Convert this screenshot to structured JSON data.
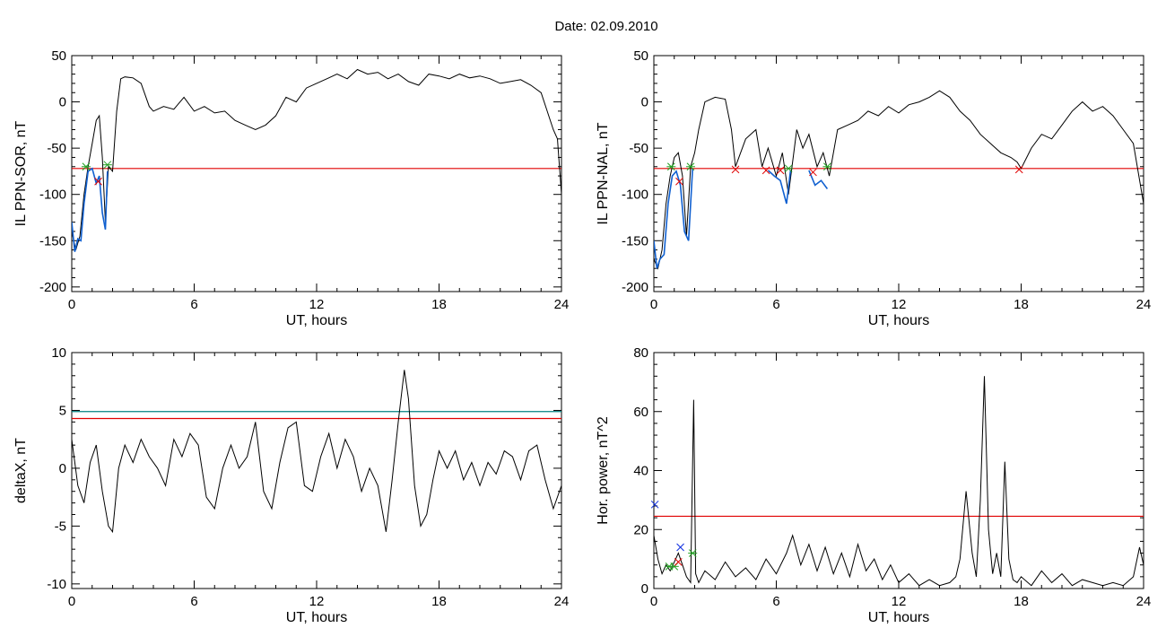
{
  "figure": {
    "date_label": "Date:  02.09.2010"
  },
  "chart_data": [
    {
      "type": "line",
      "xlabel": "UT, hours",
      "ylabel": "IL PPN-SOR, nT",
      "xlim": [
        0,
        24
      ],
      "ylim": [
        -205,
        50
      ],
      "xticks": [
        0,
        6,
        12,
        18,
        24
      ],
      "yticks": [
        -200,
        -150,
        -100,
        -50,
        0,
        50
      ],
      "threshold_lines": [
        {
          "y": -72,
          "color": "#e00000"
        }
      ],
      "series": [
        {
          "color": "#000000",
          "x": [
            0,
            0.2,
            0.4,
            0.6,
            0.8,
            1.0,
            1.2,
            1.35,
            1.5,
            1.65,
            1.8,
            2.0,
            2.2,
            2.4,
            2.6,
            3.0,
            3.4,
            3.8,
            4.0,
            4.5,
            5.0,
            5.5,
            6.0,
            6.5,
            7.0,
            7.5,
            8.0,
            8.5,
            9.0,
            9.5,
            10.0,
            10.5,
            11.0,
            11.5,
            12.0,
            12.5,
            13.0,
            13.5,
            14.0,
            14.5,
            15.0,
            15.5,
            16.0,
            16.5,
            17.0,
            17.5,
            18.0,
            18.5,
            19.0,
            19.5,
            20.0,
            20.5,
            21.0,
            21.5,
            22.0,
            22.5,
            23.0,
            23.3,
            23.6,
            23.8,
            24.0
          ],
          "y": [
            -140,
            -160,
            -145,
            -100,
            -70,
            -45,
            -20,
            -15,
            -60,
            -130,
            -70,
            -75,
            -10,
            25,
            27,
            26,
            20,
            -5,
            -10,
            -5,
            -8,
            5,
            -10,
            -5,
            -12,
            -10,
            -20,
            -25,
            -30,
            -25,
            -15,
            5,
            0,
            15,
            20,
            25,
            30,
            25,
            35,
            30,
            32,
            25,
            30,
            22,
            18,
            30,
            28,
            25,
            30,
            26,
            28,
            25,
            20,
            22,
            24,
            18,
            10,
            -10,
            -30,
            -40,
            -100
          ]
        },
        {
          "color": "#1060d0",
          "x": [
            0,
            0.15,
            0.3,
            0.45,
            0.6,
            0.8,
            1.0,
            1.2,
            1.35,
            1.5,
            1.65,
            1.75
          ],
          "y": [
            -130,
            -162,
            -148,
            -150,
            -110,
            -75,
            -72,
            -88,
            -80,
            -120,
            -138,
            -75
          ]
        }
      ],
      "markers": [
        {
          "x": 0.7,
          "y": -70,
          "symbol": "x",
          "color": "#20a020"
        },
        {
          "x": 1.75,
          "y": -68,
          "symbol": "x",
          "color": "#20a020"
        },
        {
          "x": 1.3,
          "y": -86,
          "symbol": "x",
          "color": "#e00000"
        }
      ]
    },
    {
      "type": "line",
      "xlabel": "UT, hours",
      "ylabel": "IL PPN-NAL, nT",
      "xlim": [
        0,
        24
      ],
      "ylim": [
        -205,
        50
      ],
      "xticks": [
        0,
        6,
        12,
        18,
        24
      ],
      "yticks": [
        -200,
        -150,
        -100,
        -50,
        0,
        50
      ],
      "threshold_lines": [
        {
          "y": -72,
          "color": "#e00000"
        }
      ],
      "series": [
        {
          "color": "#000000",
          "x": [
            0,
            0.2,
            0.4,
            0.6,
            0.8,
            1.0,
            1.2,
            1.4,
            1.6,
            1.8,
            2.0,
            2.2,
            2.5,
            3.0,
            3.5,
            3.8,
            4.0,
            4.5,
            5.0,
            5.3,
            5.6,
            6.0,
            6.3,
            6.6,
            7.0,
            7.3,
            7.6,
            8.0,
            8.3,
            8.6,
            9.0,
            9.5,
            10.0,
            10.5,
            11.0,
            11.5,
            12.0,
            12.5,
            13.0,
            13.5,
            14.0,
            14.5,
            15.0,
            15.5,
            16.0,
            16.5,
            17.0,
            17.5,
            17.8,
            18.0,
            18.5,
            19.0,
            19.5,
            20.0,
            20.5,
            21.0,
            21.5,
            22.0,
            22.5,
            23.0,
            23.5,
            24.0
          ],
          "y": [
            -170,
            -180,
            -160,
            -110,
            -80,
            -60,
            -55,
            -80,
            -145,
            -70,
            -55,
            -30,
            0,
            5,
            3,
            -30,
            -70,
            -40,
            -30,
            -70,
            -50,
            -80,
            -55,
            -100,
            -30,
            -50,
            -35,
            -70,
            -55,
            -80,
            -30,
            -25,
            -20,
            -10,
            -15,
            -5,
            -12,
            -3,
            0,
            5,
            12,
            5,
            -10,
            -20,
            -35,
            -45,
            -55,
            -60,
            -65,
            -72,
            -50,
            -35,
            -40,
            -25,
            -10,
            0,
            -10,
            -5,
            -15,
            -30,
            -45,
            -110
          ]
        },
        {
          "color": "#1060d0",
          "x": [
            0,
            0.15,
            0.3,
            0.5,
            0.7,
            0.9,
            1.1,
            1.3,
            1.5,
            1.7,
            1.9
          ],
          "y": [
            -150,
            -180,
            -170,
            -165,
            -110,
            -80,
            -75,
            -90,
            -140,
            -150,
            -72
          ]
        },
        {
          "color": "#1060d0",
          "x": [
            5.6,
            5.9,
            6.2,
            6.5,
            6.7
          ],
          "y": [
            -74,
            -80,
            -85,
            -110,
            -74
          ]
        },
        {
          "color": "#1060d0",
          "x": [
            7.6,
            7.9,
            8.2,
            8.5
          ],
          "y": [
            -74,
            -90,
            -85,
            -94
          ]
        }
      ],
      "markers": [
        {
          "x": 0.85,
          "y": -70,
          "symbol": "x",
          "color": "#20a020"
        },
        {
          "x": 1.8,
          "y": -70,
          "symbol": "x",
          "color": "#20a020"
        },
        {
          "x": 6.6,
          "y": -72,
          "symbol": "x",
          "color": "#20a020"
        },
        {
          "x": 8.5,
          "y": -70,
          "symbol": "x",
          "color": "#20a020"
        },
        {
          "x": 1.25,
          "y": -86,
          "symbol": "x",
          "color": "#e00000"
        },
        {
          "x": 4.0,
          "y": -73,
          "symbol": "x",
          "color": "#e00000"
        },
        {
          "x": 5.5,
          "y": -74,
          "symbol": "x",
          "color": "#e00000"
        },
        {
          "x": 6.2,
          "y": -74,
          "symbol": "x",
          "color": "#e00000"
        },
        {
          "x": 7.8,
          "y": -76,
          "symbol": "x",
          "color": "#e00000"
        },
        {
          "x": 17.9,
          "y": -73,
          "symbol": "x",
          "color": "#e00000"
        }
      ]
    },
    {
      "type": "line",
      "xlabel": "UT, hours",
      "ylabel": "deltaX, nT",
      "xlim": [
        0,
        24
      ],
      "ylim": [
        -10.4,
        10
      ],
      "xticks": [
        0,
        6,
        12,
        18,
        24
      ],
      "yticks": [
        -10,
        -5,
        0,
        5,
        10
      ],
      "threshold_lines": [
        {
          "y": 4.9,
          "color": "#008080"
        },
        {
          "y": 4.3,
          "color": "#e00000"
        }
      ],
      "series": [
        {
          "color": "#000000",
          "x": [
            0,
            0.3,
            0.6,
            0.9,
            1.2,
            1.5,
            1.8,
            2.0,
            2.3,
            2.6,
            3.0,
            3.4,
            3.8,
            4.2,
            4.6,
            5.0,
            5.4,
            5.8,
            6.2,
            6.6,
            7.0,
            7.4,
            7.8,
            8.2,
            8.6,
            9.0,
            9.4,
            9.8,
            10.2,
            10.6,
            11.0,
            11.4,
            11.8,
            12.2,
            12.6,
            13.0,
            13.4,
            13.8,
            14.2,
            14.6,
            15.0,
            15.4,
            15.7,
            16.0,
            16.3,
            16.5,
            16.8,
            17.1,
            17.4,
            17.7,
            18.0,
            18.4,
            18.8,
            19.2,
            19.6,
            20.0,
            20.4,
            20.8,
            21.2,
            21.6,
            22.0,
            22.4,
            22.8,
            23.2,
            23.6,
            24.0
          ],
          "y": [
            2.5,
            -1.5,
            -3.0,
            0.5,
            2.0,
            -2.0,
            -5.0,
            -5.5,
            0.0,
            2.0,
            0.5,
            2.5,
            1.0,
            0.0,
            -1.5,
            2.5,
            1.0,
            3.0,
            2.0,
            -2.5,
            -3.5,
            0.0,
            2.0,
            0.0,
            1.0,
            4.0,
            -2.0,
            -3.5,
            0.5,
            3.5,
            4.0,
            -1.5,
            -2.0,
            1.0,
            3.0,
            0.0,
            2.5,
            1.0,
            -2.0,
            0.0,
            -1.5,
            -5.5,
            -1.0,
            4.0,
            8.5,
            6.0,
            -1.5,
            -5.0,
            -4.0,
            -1.0,
            1.5,
            0.0,
            1.5,
            -1.0,
            0.5,
            -1.5,
            0.5,
            -0.5,
            1.5,
            1.0,
            -1.0,
            1.5,
            2.0,
            -1.0,
            -3.5,
            -1.5
          ]
        }
      ]
    },
    {
      "type": "line",
      "xlabel": "UT, hours",
      "ylabel": "Hor. power, nT^2",
      "xlim": [
        0,
        24
      ],
      "ylim": [
        0,
        80
      ],
      "xticks": [
        0,
        6,
        12,
        18,
        24
      ],
      "yticks": [
        0,
        20,
        40,
        60,
        80
      ],
      "threshold_lines": [
        {
          "y": 24.5,
          "color": "#e00000"
        }
      ],
      "series": [
        {
          "color": "#000000",
          "x": [
            0,
            0.2,
            0.4,
            0.6,
            0.8,
            1.0,
            1.2,
            1.4,
            1.6,
            1.8,
            1.95,
            2.05,
            2.2,
            2.5,
            3.0,
            3.5,
            4.0,
            4.5,
            5.0,
            5.5,
            6.0,
            6.5,
            6.8,
            7.2,
            7.6,
            8.0,
            8.4,
            8.8,
            9.2,
            9.6,
            10.0,
            10.4,
            10.8,
            11.2,
            11.6,
            12.0,
            12.5,
            13.0,
            13.5,
            14.0,
            14.5,
            14.8,
            15.0,
            15.3,
            15.6,
            15.8,
            16.0,
            16.2,
            16.4,
            16.6,
            16.8,
            17.0,
            17.2,
            17.4,
            17.6,
            17.8,
            18.0,
            18.5,
            19.0,
            19.5,
            20.0,
            20.5,
            21.0,
            21.5,
            22.0,
            22.5,
            23.0,
            23.5,
            23.8,
            24.0
          ],
          "y": [
            18,
            10,
            5,
            8,
            6,
            9,
            12,
            8,
            4,
            2,
            64,
            5,
            2,
            6,
            3,
            9,
            4,
            7,
            3,
            10,
            5,
            12,
            18,
            8,
            15,
            6,
            14,
            5,
            12,
            4,
            15,
            6,
            10,
            3,
            8,
            2,
            5,
            1,
            3,
            1,
            2,
            4,
            10,
            33,
            12,
            4,
            30,
            72,
            20,
            5,
            12,
            4,
            43,
            10,
            3,
            2,
            4,
            1,
            6,
            2,
            5,
            1,
            3,
            2,
            1,
            2,
            1,
            4,
            14,
            8
          ]
        }
      ],
      "markers": [
        {
          "x": 0.75,
          "y": 7.5,
          "symbol": "x",
          "color": "#20a020"
        },
        {
          "x": 1.0,
          "y": 7.5,
          "symbol": "x",
          "color": "#20a020"
        },
        {
          "x": 1.9,
          "y": 12,
          "symbol": "x",
          "color": "#20a020"
        },
        {
          "x": 1.2,
          "y": 9,
          "symbol": "x",
          "color": "#e00000"
        },
        {
          "x": 1.3,
          "y": 14,
          "symbol": "x",
          "color": "#1030e0"
        },
        {
          "x": 0.05,
          "y": 28.5,
          "symbol": "x",
          "color": "#1030e0"
        }
      ]
    }
  ]
}
